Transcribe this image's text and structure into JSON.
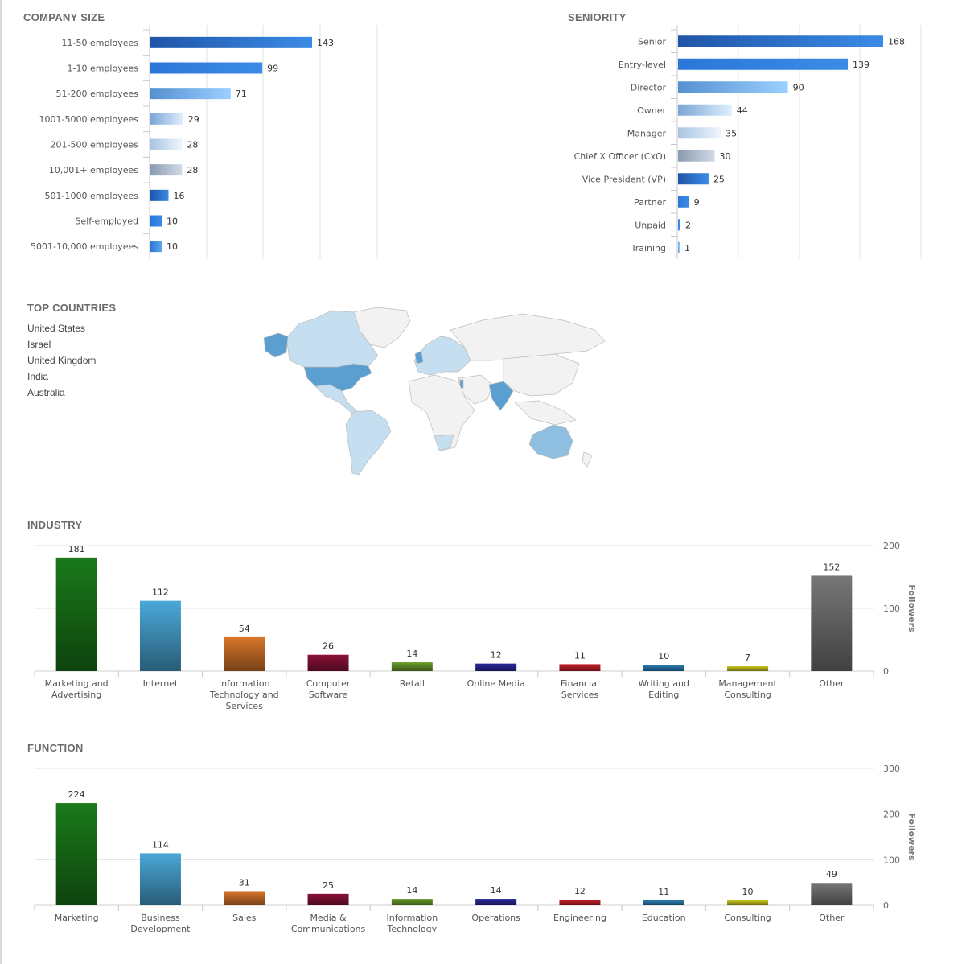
{
  "company_size": {
    "title": "COMPANY SIZE",
    "chart_data": {
      "type": "bar",
      "orientation": "horizontal",
      "categories": [
        "11-50 employees",
        "1-10 employees",
        "51-200 employees",
        "1001-5000 employees",
        "201-500 employees",
        "10,001+ employees",
        "501-1000 employees",
        "Self-employed",
        "5001-10,000 employees"
      ],
      "values": [
        143,
        99,
        71,
        29,
        28,
        28,
        16,
        10,
        10
      ],
      "xlim": [
        0,
        400
      ],
      "grid": true
    }
  },
  "seniority": {
    "title": "SENIORITY",
    "chart_data": {
      "type": "bar",
      "orientation": "horizontal",
      "categories": [
        "Senior",
        "Entry-level",
        "Director",
        "Owner",
        "Manager",
        "Chief X Officer (CxO)",
        "Vice President (VP)",
        "Partner",
        "Unpaid",
        "Training"
      ],
      "values": [
        168,
        139,
        90,
        44,
        35,
        30,
        25,
        9,
        2,
        1
      ],
      "xlim": [
        0,
        200
      ],
      "grid": true
    }
  },
  "top_countries": {
    "title": "TOP COUNTRIES",
    "countries": [
      "United States",
      "Israel",
      "United Kingdom",
      "India",
      "Australia"
    ],
    "highlight_colors": {
      "strong": "#5b9fd0",
      "medium": "#8fbfe0",
      "light": "#c6dff0",
      "none": "#f2f2f2"
    }
  },
  "industry": {
    "title": "INDUSTRY",
    "chart_data": {
      "type": "bar",
      "categories": [
        "Marketing and Advertising",
        "Internet",
        "Information Technology and Services",
        "Computer Software",
        "Retail",
        "Online Media",
        "Financial Services",
        "Writing and Editing",
        "Management Consulting",
        "Other"
      ],
      "values": [
        181,
        112,
        54,
        26,
        14,
        12,
        11,
        10,
        7,
        152
      ],
      "colors": [
        "#1a7a1a",
        "#4aa8d8",
        "#d9762b",
        "#8c1238",
        "#6a9e2e",
        "#2a2a9a",
        "#c8202a",
        "#2b7fb5",
        "#c7c51d",
        "#777777"
      ],
      "ylabel": "Followers",
      "yticks": [
        "0",
        "100",
        "200"
      ],
      "ylim": [
        0,
        200
      ],
      "grid": true
    }
  },
  "function": {
    "title": "FUNCTION",
    "chart_data": {
      "type": "bar",
      "categories": [
        "Marketing",
        "Business Development",
        "Sales",
        "Media & Communications",
        "Information Technology",
        "Operations",
        "Engineering",
        "Education",
        "Consulting",
        "Other"
      ],
      "values": [
        224,
        114,
        31,
        25,
        14,
        14,
        12,
        11,
        10,
        49
      ],
      "colors": [
        "#1a7a1a",
        "#4aa8d8",
        "#d9762b",
        "#8c1238",
        "#6a9e2e",
        "#2a2a9a",
        "#c8202a",
        "#2b7fb5",
        "#c7c51d",
        "#777777"
      ],
      "ylabel": "Followers",
      "yticks": [
        "0",
        "100",
        "200",
        "300"
      ],
      "ylim": [
        0,
        300
      ],
      "grid": true
    }
  }
}
